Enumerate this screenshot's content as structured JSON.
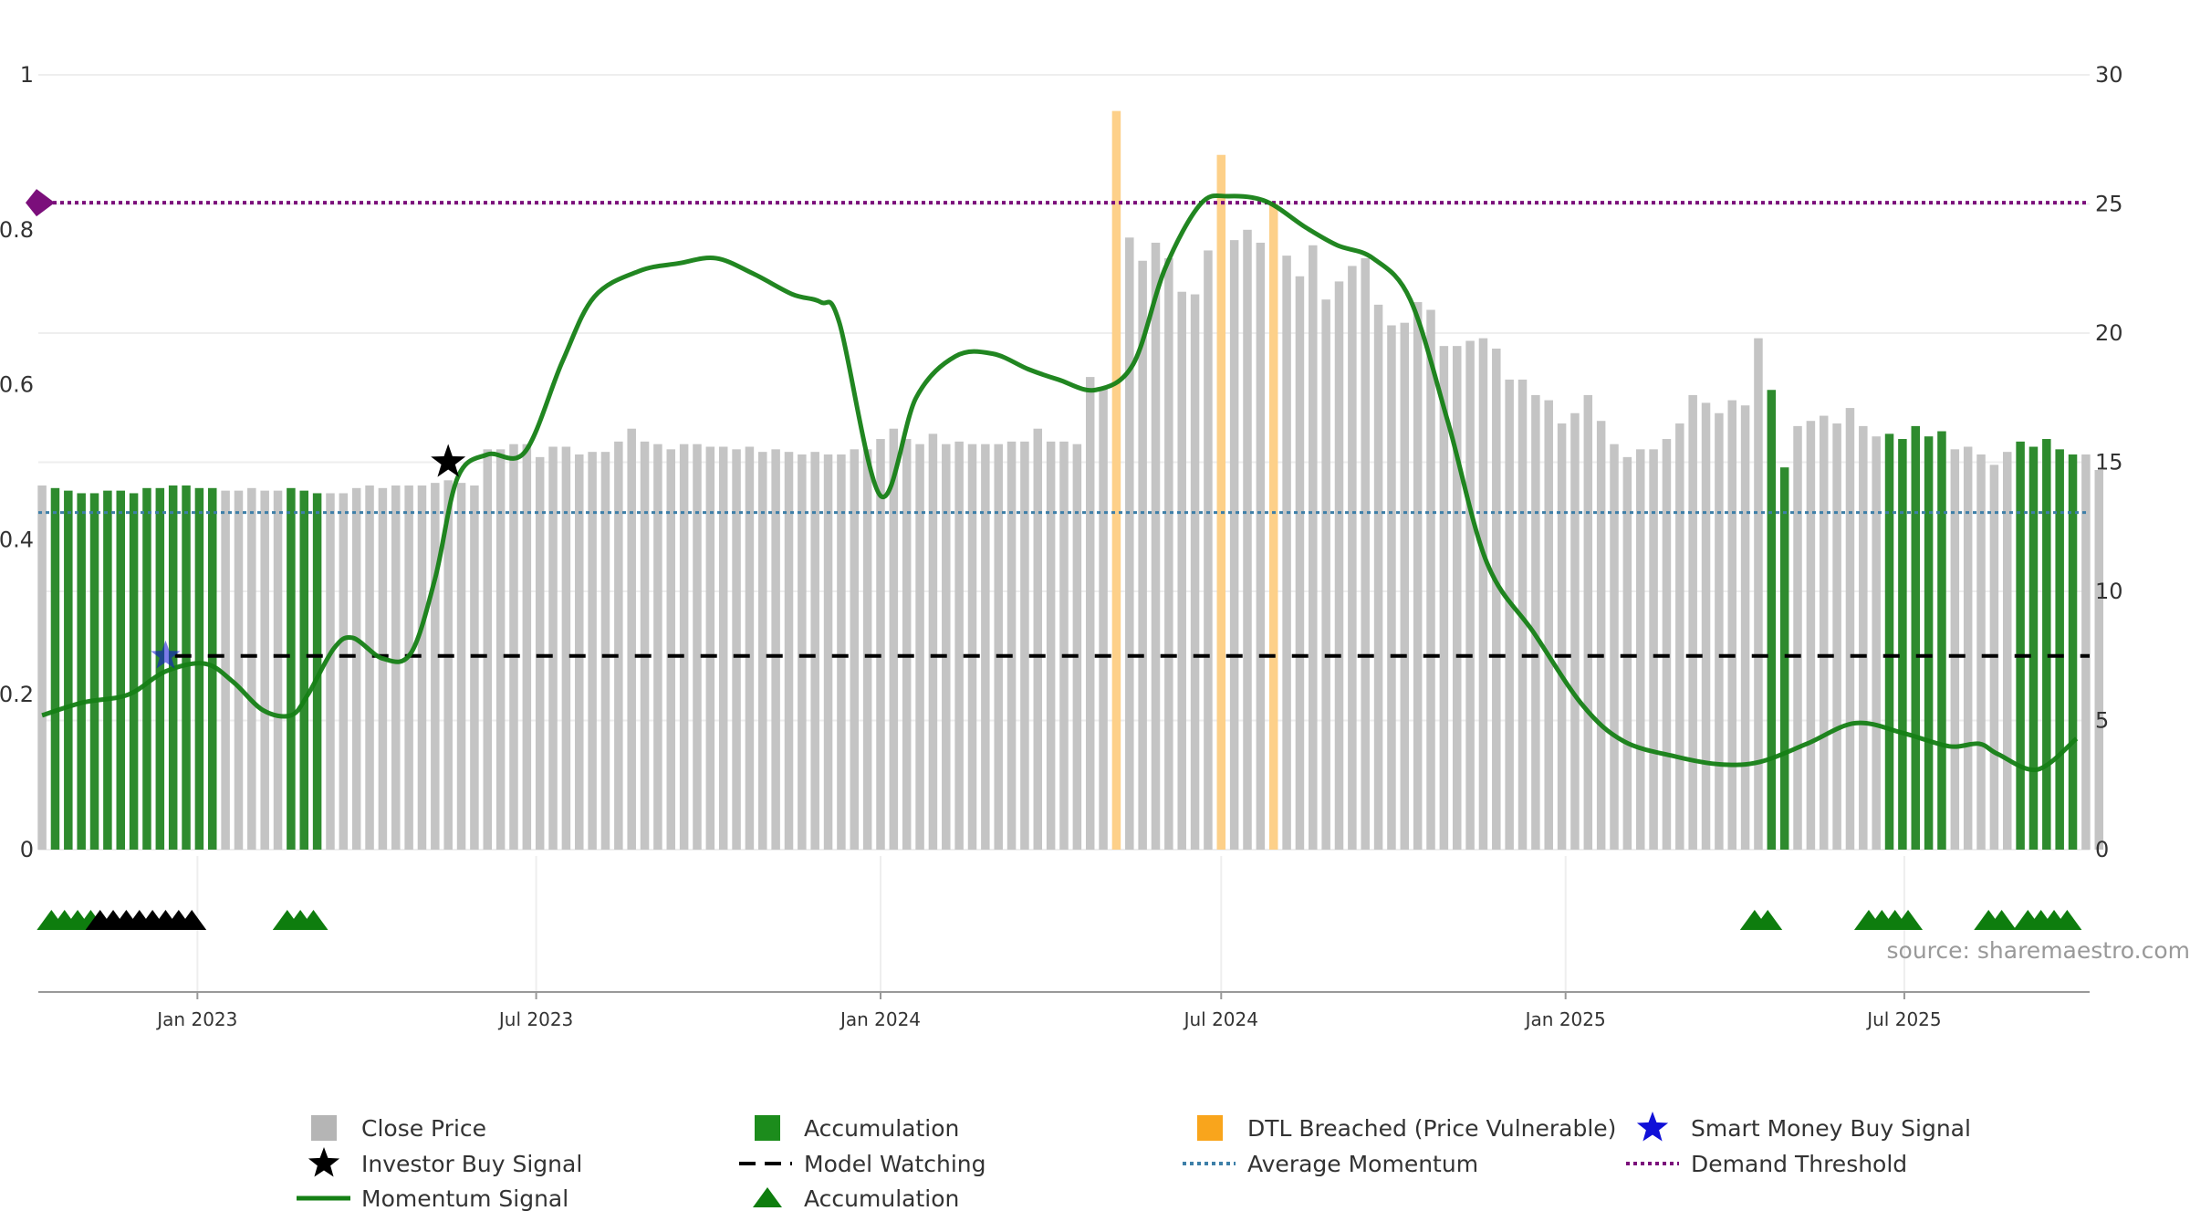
{
  "chart_data": {
    "type": "bar",
    "source": "source: sharemaestro.com",
    "left_axis": {
      "range": [
        0,
        1
      ],
      "ticks": [
        "0",
        "0.2",
        "0.4",
        "0.6",
        "0.8",
        "1"
      ]
    },
    "right_axis": {
      "range": [
        0,
        30
      ],
      "ticks": [
        "0",
        "5",
        "10",
        "15",
        "20",
        "25",
        "30"
      ]
    },
    "date_range": [
      "2022-10-08",
      "2025-10-08"
    ],
    "x_ticks": [
      {
        "label": "Jan 2023",
        "date": "2023-01-01"
      },
      {
        "label": "Jul 2023",
        "date": "2023-07-01"
      },
      {
        "label": "Jan 2024",
        "date": "2024-01-01"
      },
      {
        "label": "Jul 2024",
        "date": "2024-07-01"
      },
      {
        "label": "Jan 2025",
        "date": "2025-01-01"
      },
      {
        "label": "Jul 2025",
        "date": "2025-07-01"
      }
    ],
    "close_price": {
      "start_date": "2022-10-10",
      "interval_days": 7,
      "values": [
        14.1,
        14.0,
        13.9,
        13.8,
        13.8,
        13.9,
        13.9,
        13.8,
        14.0,
        14.0,
        14.1,
        14.1,
        14.0,
        14.0,
        13.9,
        13.9,
        14.0,
        13.9,
        13.9,
        14.0,
        13.9,
        13.8,
        13.8,
        13.8,
        14.0,
        14.1,
        14.0,
        14.1,
        14.1,
        14.1,
        14.2,
        14.3,
        14.2,
        14.1,
        15.5,
        15.5,
        15.7,
        15.7,
        15.2,
        15.6,
        15.6,
        15.3,
        15.4,
        15.4,
        15.8,
        16.3,
        15.8,
        15.7,
        15.5,
        15.7,
        15.7,
        15.6,
        15.6,
        15.5,
        15.6,
        15.4,
        15.5,
        15.4,
        15.3,
        15.4,
        15.3,
        15.3,
        15.5,
        15.5,
        15.9,
        16.3,
        15.9,
        15.7,
        16.1,
        15.7,
        15.8,
        15.7,
        15.7,
        15.7,
        15.8,
        15.8,
        16.3,
        15.8,
        15.8,
        15.7,
        18.3,
        17.9,
        28.6,
        23.7,
        22.8,
        23.5,
        22.9,
        21.6,
        21.5,
        23.2,
        26.9,
        23.6,
        24.0,
        23.5,
        25.0,
        23.0,
        22.2,
        23.4,
        21.3,
        22.0,
        22.6,
        22.9,
        21.1,
        20.3,
        20.4,
        21.2,
        20.9,
        19.5,
        19.5,
        19.7,
        19.8,
        19.4,
        18.2,
        18.2,
        17.6,
        17.4,
        16.5,
        16.9,
        17.6,
        16.6,
        15.7,
        15.2,
        15.5,
        15.5,
        15.9,
        16.5,
        17.6,
        17.3,
        16.9,
        17.4,
        17.2,
        19.8,
        17.8,
        14.8,
        16.4,
        16.6,
        16.8,
        16.5,
        17.1,
        16.4,
        16.0,
        16.1,
        15.9,
        16.4,
        16.0,
        16.2,
        15.5,
        15.6,
        15.3,
        14.9,
        15.4,
        15.8,
        15.6,
        15.9,
        15.5,
        15.3,
        15.3,
        14.7
      ]
    },
    "accumulation_weeks": [
      1,
      2,
      3,
      4,
      5,
      6,
      7,
      8,
      9,
      10,
      11,
      12,
      13,
      19,
      20,
      21,
      132,
      133,
      141,
      142,
      143,
      144,
      145,
      151,
      152,
      153,
      154,
      155
    ],
    "dtl_breached": {
      "weeks": [
        82,
        90,
        94
      ],
      "values": [
        28.6,
        26.9,
        25.0
      ]
    },
    "momentum_signal": {
      "dates": [
        "2022-10-10",
        "2022-11-01",
        "2022-11-25",
        "2022-12-15",
        "2023-01-05",
        "2023-01-20",
        "2023-02-05",
        "2023-02-20",
        "2023-03-01",
        "2023-03-15",
        "2023-03-25",
        "2023-04-10",
        "2023-04-25",
        "2023-05-08",
        "2023-05-20",
        "2023-06-05",
        "2023-06-25",
        "2023-07-15",
        "2023-08-01",
        "2023-08-25",
        "2023-09-15",
        "2023-10-05",
        "2023-10-25",
        "2023-11-15",
        "2023-11-30",
        "2023-12-10",
        "2024-01-01",
        "2024-01-20",
        "2024-02-10",
        "2024-03-01",
        "2024-03-20",
        "2024-04-05",
        "2024-04-25",
        "2024-05-15",
        "2024-06-01",
        "2024-06-20",
        "2024-07-05",
        "2024-07-25",
        "2024-08-15",
        "2024-09-01",
        "2024-09-20",
        "2024-10-10",
        "2024-10-30",
        "2024-11-20",
        "2024-12-15",
        "2025-01-10",
        "2025-02-01",
        "2025-03-01",
        "2025-03-25",
        "2025-04-15",
        "2025-05-10",
        "2025-06-05",
        "2025-07-01",
        "2025-07-25",
        "2025-08-10",
        "2025-08-20",
        "2025-09-10",
        "2025-10-01"
      ],
      "values": [
        5.2,
        5.7,
        6.0,
        6.9,
        7.2,
        6.5,
        5.4,
        5.2,
        6.0,
        7.8,
        8.2,
        7.4,
        7.6,
        10.5,
        14.4,
        15.3,
        15.4,
        18.9,
        21.4,
        22.4,
        22.7,
        22.9,
        22.3,
        21.5,
        21.2,
        20.4,
        13.7,
        17.5,
        19.1,
        19.2,
        18.6,
        18.2,
        17.8,
        18.8,
        22.5,
        25.0,
        25.3,
        25.1,
        24.1,
        23.4,
        22.9,
        21.3,
        16.6,
        11.1,
        8.4,
        5.6,
        4.2,
        3.6,
        3.3,
        3.4,
        4.1,
        4.9,
        4.5,
        4.0,
        4.1,
        3.7,
        3.1,
        4.3
      ]
    },
    "average_momentum": 0.435,
    "model_watching": {
      "value": 7.5,
      "start_date": "2022-12-20"
    },
    "demand_threshold": 0.835,
    "investor_buy_signal": {
      "date": "2023-05-15",
      "value": 15.0
    },
    "smart_money_buy_signal": {
      "date": "2022-12-15",
      "value": 7.5
    },
    "accumulation_triangles": {
      "green_dates": [
        "2022-10-15",
        "2022-10-22",
        "2022-10-29",
        "2022-11-05",
        "2023-02-18",
        "2023-02-25",
        "2023-03-04",
        "2025-04-12",
        "2025-04-19",
        "2025-06-12",
        "2025-06-19",
        "2025-06-26",
        "2025-07-03",
        "2025-08-15",
        "2025-08-22",
        "2025-09-05",
        "2025-09-12",
        "2025-09-19",
        "2025-09-26"
      ],
      "black_dates": [
        "2022-11-10",
        "2022-11-17",
        "2022-11-24",
        "2022-12-01",
        "2022-12-08",
        "2022-12-15",
        "2022-12-22",
        "2022-12-29"
      ]
    },
    "legend": [
      "Close Price",
      "Accumulation",
      "DTL Breached (Price Vulnerable)",
      "Smart Money Buy Signal",
      "Investor Buy Signal",
      "Model Watching",
      "Average Momentum",
      "Demand Threshold",
      "Momentum Signal",
      "Accumulation"
    ],
    "colors": {
      "close": "#c4c4c4",
      "accumulation": "#2e8b2e",
      "dtl": "#fdd089",
      "momentum": "#158015",
      "avg_momentum": "#3d7fa8",
      "demand": "#7b0f7b",
      "model_watching": "#000000",
      "smart_money": "#1010d8",
      "investor": "#000000",
      "triangle_green": "#0e7d0e",
      "triangle_black": "#000000",
      "grid": "#eeeeee",
      "axis": "#999999",
      "legend_close": "#b5b5b5",
      "legend_accum": "#1c8c1c",
      "legend_dtl": "#f9a51c"
    }
  }
}
